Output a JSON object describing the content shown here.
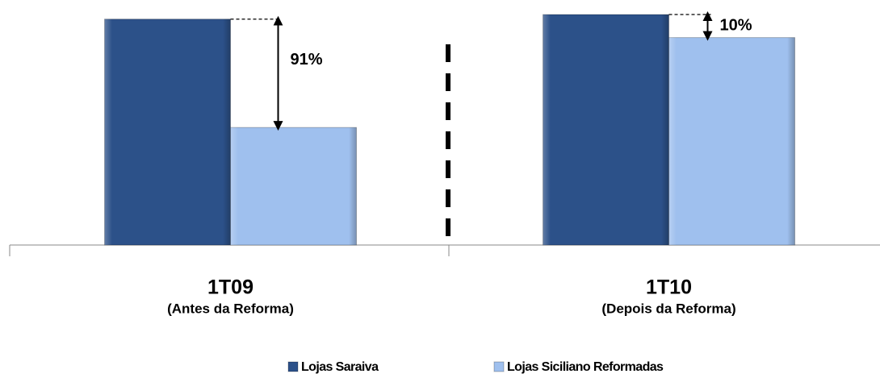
{
  "chart_data": {
    "type": "bar",
    "categories": [
      "1T09",
      "1T10"
    ],
    "category_notes": [
      "(Antes da Reforma)",
      "(Depois da Reforma)"
    ],
    "series": [
      {
        "name": "Lojas Saraiva",
        "color": "#2c5189",
        "values": [
          98,
          100
        ]
      },
      {
        "name": "Lojas Siciliano Reformadas",
        "color": "#9fc0ee",
        "values": [
          51,
          90
        ]
      }
    ],
    "annotations": [
      "91%",
      "10%"
    ]
  }
}
